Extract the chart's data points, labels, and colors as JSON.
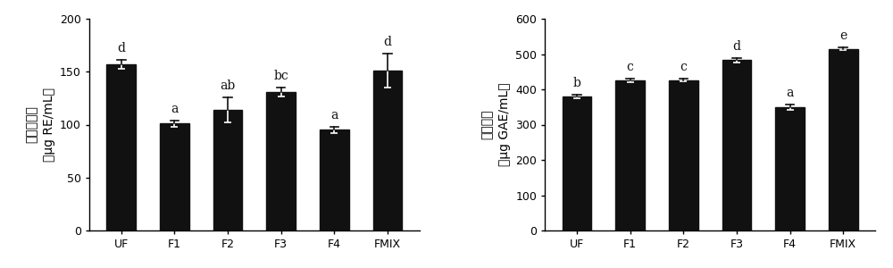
{
  "left": {
    "categories": [
      "UF",
      "F1",
      "F2",
      "F3",
      "F4",
      "FMIX"
    ],
    "values": [
      157,
      101,
      114,
      131,
      95,
      151
    ],
    "errors": [
      4,
      3,
      12,
      4,
      3,
      16
    ],
    "labels": [
      "d",
      "a",
      "ab",
      "bc",
      "a",
      "d"
    ],
    "ylabel_chinese": "总黄酮含量",
    "ylabel_units": "（μg RE/mL）",
    "ylim": [
      0,
      200
    ],
    "yticks": [
      0,
      50,
      100,
      150,
      200
    ]
  },
  "right": {
    "categories": [
      "UF",
      "F1",
      "F2",
      "F3",
      "F4",
      "FMIX"
    ],
    "values": [
      380,
      425,
      426,
      483,
      349,
      515
    ],
    "errors": [
      5,
      5,
      4,
      6,
      8,
      4
    ],
    "labels": [
      "b",
      "c",
      "c",
      "d",
      "a",
      "e"
    ],
    "ylabel_chinese": "总酚含量",
    "ylabel_units": "（μg GAE/mL）",
    "ylim": [
      0,
      600
    ],
    "yticks": [
      0,
      100,
      200,
      300,
      400,
      500,
      600
    ]
  },
  "bar_color": "#111111",
  "bar_width": 0.55,
  "label_fontsize": 10,
  "tick_fontsize": 9,
  "ylabel_fontsize": 10,
  "background_color": "#ffffff",
  "error_capsize": 3,
  "error_color": "#111111",
  "error_linewidth": 1.2
}
